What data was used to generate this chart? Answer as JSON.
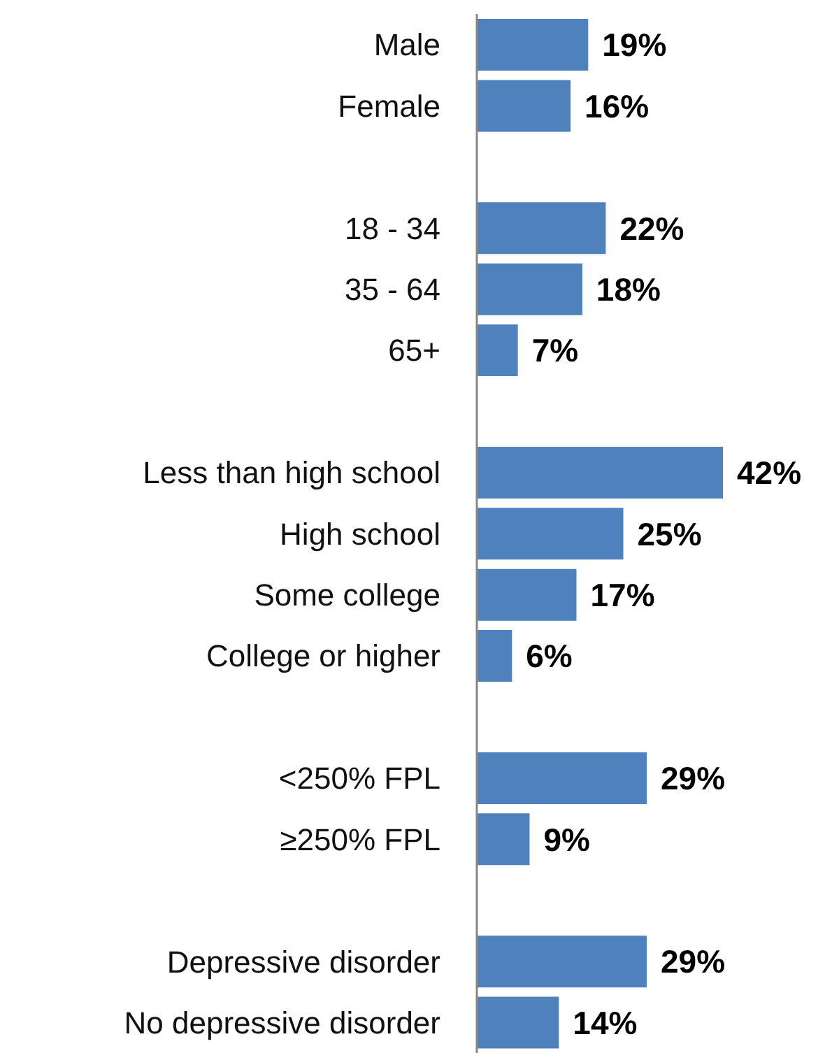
{
  "chart_data": {
    "type": "bar",
    "orientation": "horizontal",
    "categories": [
      "Male",
      "Female",
      null,
      "18 - 34",
      "35 - 64",
      "65+",
      null,
      "Less than high school",
      "High school",
      "Some college",
      "College or higher",
      null,
      "<250% FPL",
      "≥250% FPL",
      null,
      "Depressive disorder",
      "No depressive disorder"
    ],
    "values": [
      19,
      16,
      null,
      22,
      18,
      7,
      null,
      42,
      25,
      17,
      6,
      null,
      29,
      9,
      null,
      29,
      14
    ],
    "value_labels": [
      "19%",
      "16%",
      null,
      "22%",
      "18%",
      "7%",
      null,
      "42%",
      "25%",
      "17%",
      "6%",
      null,
      "29%",
      "9%",
      null,
      "29%",
      "14%"
    ],
    "color": "#4f81bd"
  }
}
